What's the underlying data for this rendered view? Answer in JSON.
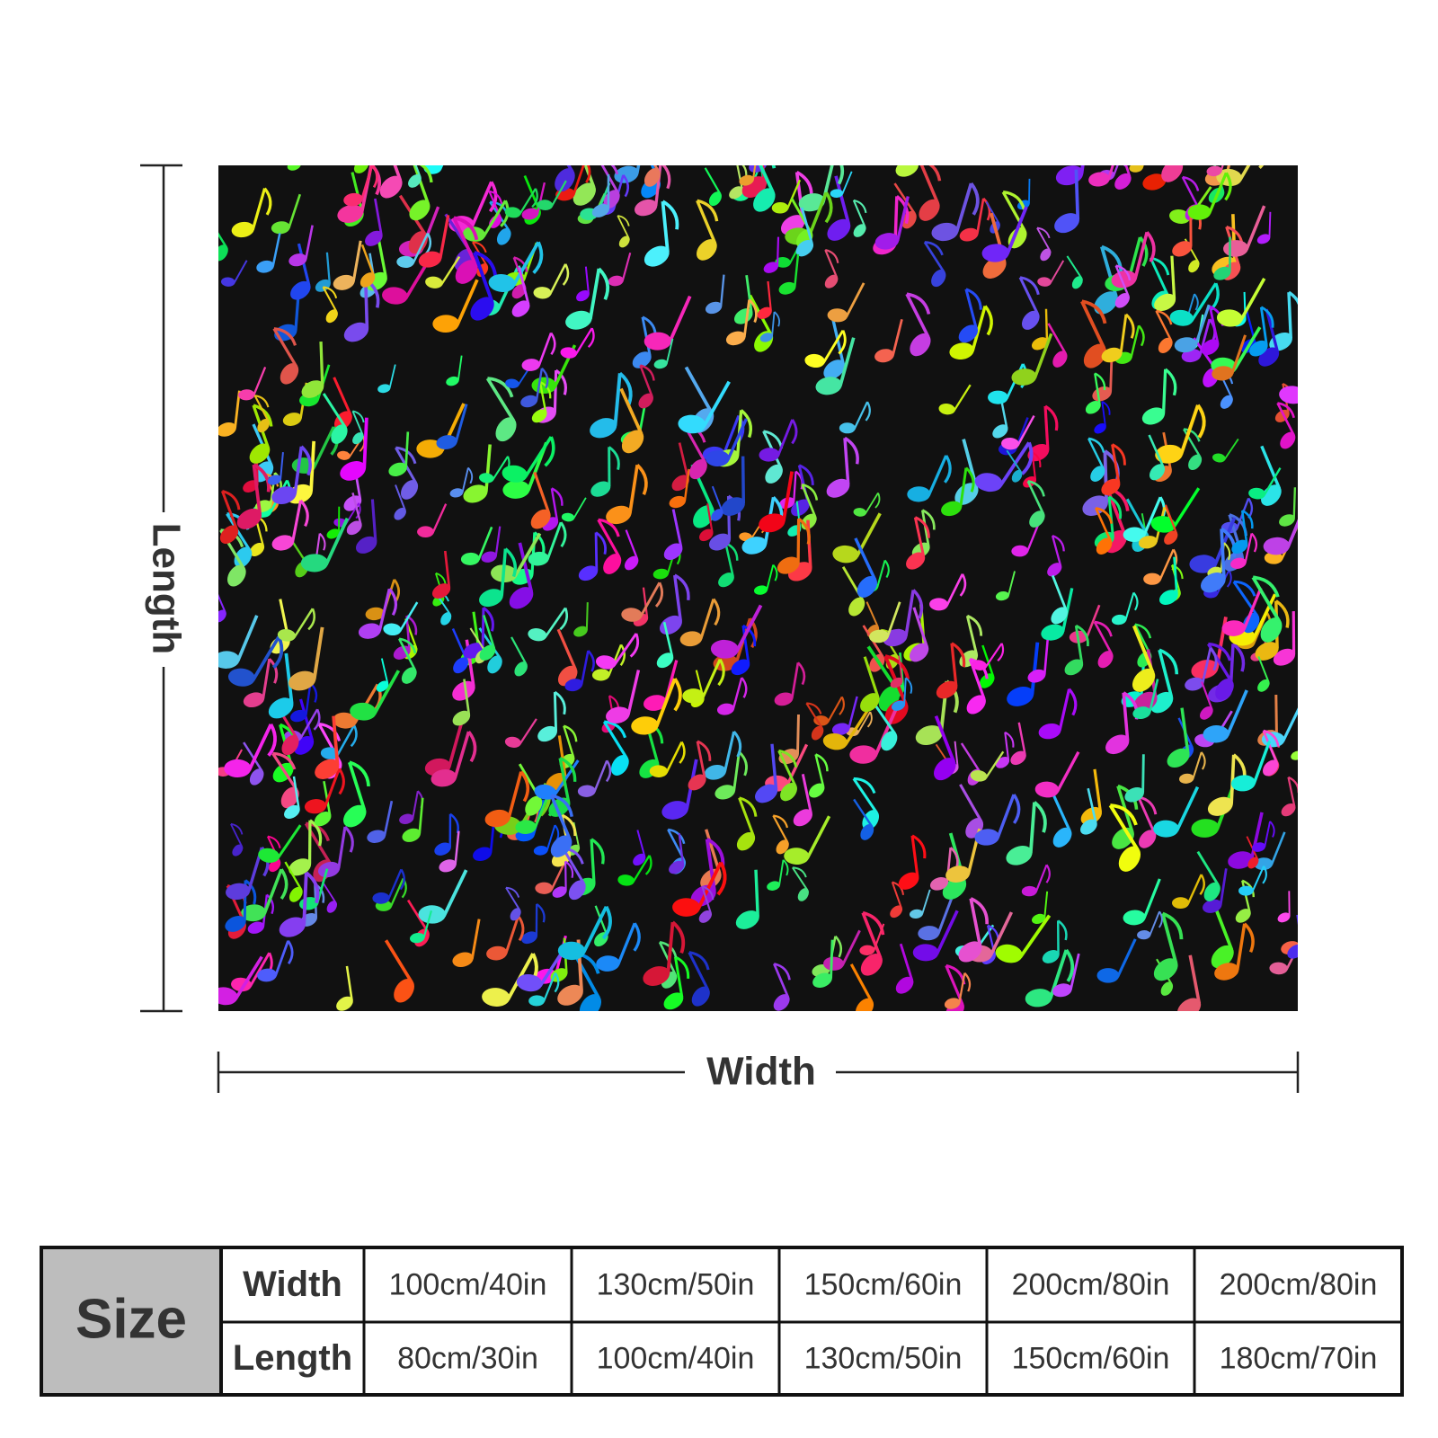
{
  "labels": {
    "length": "Length",
    "width": "Width"
  },
  "table": {
    "title": "Size",
    "rows": [
      [
        "Width",
        "100cm/40in",
        "130cm/50in",
        "150cm/60in",
        "200cm/80in",
        "200cm/80in"
      ],
      [
        "Length",
        "80cm/30in",
        "100cm/40in",
        "130cm/50in",
        "150cm/60in",
        "180cm/70in"
      ]
    ]
  }
}
